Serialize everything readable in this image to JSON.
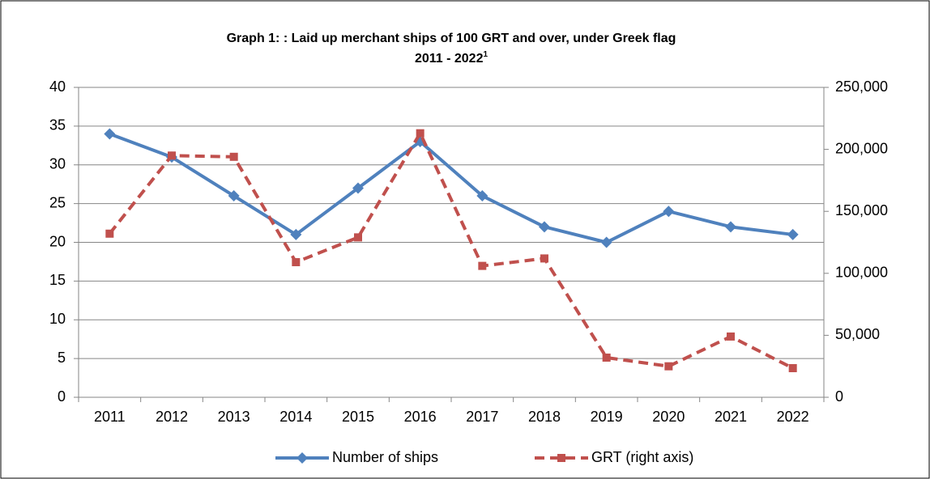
{
  "chart_data": {
    "type": "line",
    "title": [
      "Graph 1: : Laid up merchant ships of 100 GRT and over, under Greek flag",
      "2011 - 2022"
    ],
    "title_footnote": "1",
    "categories": [
      "2011",
      "2012",
      "2013",
      "2014",
      "2015",
      "2016",
      "2017",
      "2018",
      "2019",
      "2020",
      "2021",
      "2022"
    ],
    "series": [
      {
        "name": "Number of ships",
        "color": "#4f81bd",
        "marker": "diamond",
        "dashed": false,
        "axis": "y",
        "values": [
          34,
          31,
          26,
          21,
          27,
          33,
          26,
          22,
          20,
          24,
          22,
          21
        ]
      },
      {
        "name": "GRT (right axis)",
        "color": "#c0504d",
        "marker": "square",
        "dashed": true,
        "axis": "y2",
        "values": [
          132000,
          195000,
          194000,
          109000,
          129000,
          213000,
          106000,
          112000,
          32000,
          25000,
          49000,
          23500
        ]
      }
    ],
    "ylim": [
      0,
      40
    ],
    "yticks": [
      0,
      5,
      10,
      15,
      20,
      25,
      30,
      35,
      40
    ],
    "y2lim": [
      0,
      250000
    ],
    "y2ticks": [
      0,
      {
        "value": 50000,
        "label": "50,000"
      },
      {
        "value": 100000,
        "label": "100,000"
      },
      {
        "value": 150000,
        "label": "150,000"
      },
      {
        "value": 200000,
        "label": "200,000"
      },
      {
        "value": 250000,
        "label": "250,000"
      }
    ],
    "grid": true,
    "legend": "bottom"
  }
}
